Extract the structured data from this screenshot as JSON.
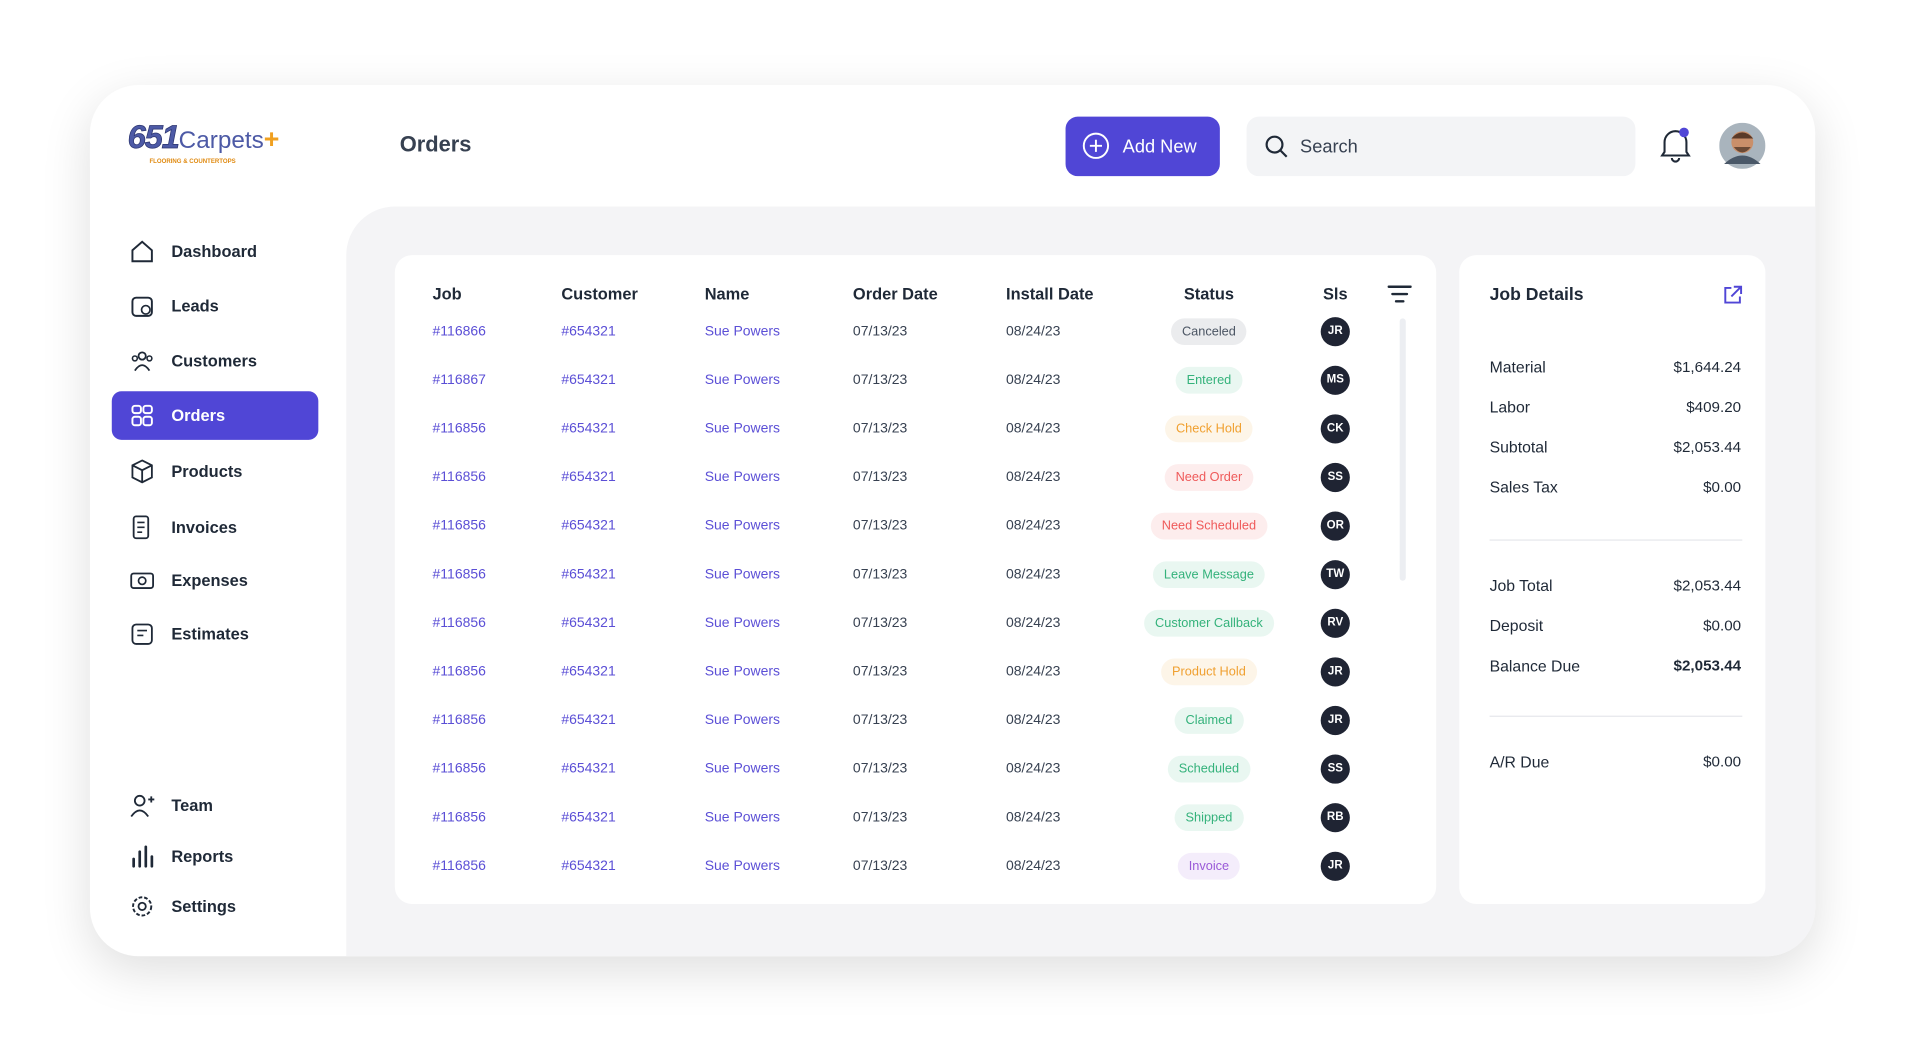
{
  "header": {
    "logo": {
      "number": "651",
      "name": "Carpets",
      "plus": "+",
      "tagline": "FLOORING & COUNTERTOPS"
    },
    "title": "Orders",
    "add_button": "Add New",
    "search_placeholder": "Search"
  },
  "sidebar": {
    "main": [
      {
        "label": "Dashboard"
      },
      {
        "label": "Leads"
      },
      {
        "label": "Customers"
      },
      {
        "label": "Orders",
        "active": true
      },
      {
        "label": "Products"
      },
      {
        "label": "Invoices"
      },
      {
        "label": "Expenses"
      },
      {
        "label": "Estimates"
      }
    ],
    "bottom": [
      {
        "label": "Team"
      },
      {
        "label": "Reports"
      },
      {
        "label": "Settings"
      }
    ]
  },
  "table": {
    "columns": [
      "Job",
      "Customer",
      "Name",
      "Order Date",
      "Install Date",
      "Status",
      "Sls"
    ],
    "rows": [
      {
        "job": "#116866",
        "customer": "#654321",
        "name": "Sue Powers",
        "order_date": "07/13/23",
        "install_date": "08/24/23",
        "status": "Canceled",
        "status_color": "#4b5563",
        "sls": "JR"
      },
      {
        "job": "#116867",
        "customer": "#654321",
        "name": "Sue Powers",
        "order_date": "07/13/23",
        "install_date": "08/24/23",
        "status": "Entered",
        "status_color": "#34b27b",
        "sls": "MS"
      },
      {
        "job": "#116856",
        "customer": "#654321",
        "name": "Sue Powers",
        "order_date": "07/13/23",
        "install_date": "08/24/23",
        "status": "Check Hold",
        "status_color": "#f0a030",
        "sls": "CK"
      },
      {
        "job": "#116856",
        "customer": "#654321",
        "name": "Sue Powers",
        "order_date": "07/13/23",
        "install_date": "08/24/23",
        "status": "Need Order",
        "status_color": "#ef5a5a",
        "sls": "SS"
      },
      {
        "job": "#116856",
        "customer": "#654321",
        "name": "Sue Powers",
        "order_date": "07/13/23",
        "install_date": "08/24/23",
        "status": "Need Scheduled",
        "status_color": "#ef5a5a",
        "sls": "OR"
      },
      {
        "job": "#116856",
        "customer": "#654321",
        "name": "Sue Powers",
        "order_date": "07/13/23",
        "install_date": "08/24/23",
        "status": "Leave Message",
        "status_color": "#34b27b",
        "sls": "TW"
      },
      {
        "job": "#116856",
        "customer": "#654321",
        "name": "Sue Powers",
        "order_date": "07/13/23",
        "install_date": "08/24/23",
        "status": "Customer Callback",
        "status_color": "#34b27b",
        "sls": "RV"
      },
      {
        "job": "#116856",
        "customer": "#654321",
        "name": "Sue Powers",
        "order_date": "07/13/23",
        "install_date": "08/24/23",
        "status": "Product Hold",
        "status_color": "#f0a030",
        "sls": "JR"
      },
      {
        "job": "#116856",
        "customer": "#654321",
        "name": "Sue Powers",
        "order_date": "07/13/23",
        "install_date": "08/24/23",
        "status": "Claimed",
        "status_color": "#34b27b",
        "sls": "JR"
      },
      {
        "job": "#116856",
        "customer": "#654321",
        "name": "Sue Powers",
        "order_date": "07/13/23",
        "install_date": "08/24/23",
        "status": "Scheduled",
        "status_color": "#34b27b",
        "sls": "SS"
      },
      {
        "job": "#116856",
        "customer": "#654321",
        "name": "Sue Powers",
        "order_date": "07/13/23",
        "install_date": "08/24/23",
        "status": "Shipped",
        "status_color": "#34b27b",
        "sls": "RB"
      },
      {
        "job": "#116856",
        "customer": "#654321",
        "name": "Sue Powers",
        "order_date": "07/13/23",
        "install_date": "08/24/23",
        "status": "Invoice",
        "status_color": "#9a5ad8",
        "sls": "JR"
      }
    ]
  },
  "job_details": {
    "title": "Job Details",
    "groups": [
      [
        {
          "label": "Material",
          "value": "$1,644.24"
        },
        {
          "label": "Labor",
          "value": "$409.20"
        },
        {
          "label": "Subtotal",
          "value": "$2,053.44"
        },
        {
          "label": "Sales Tax",
          "value": "$0.00"
        }
      ],
      [
        {
          "label": "Job Total",
          "value": "$2,053.44"
        },
        {
          "label": "Deposit",
          "value": "$0.00"
        },
        {
          "label": "Balance Due",
          "value": "$2,053.44",
          "emphasis": true
        }
      ],
      [
        {
          "label": "A/R Due",
          "value": "$0.00"
        }
      ]
    ]
  }
}
